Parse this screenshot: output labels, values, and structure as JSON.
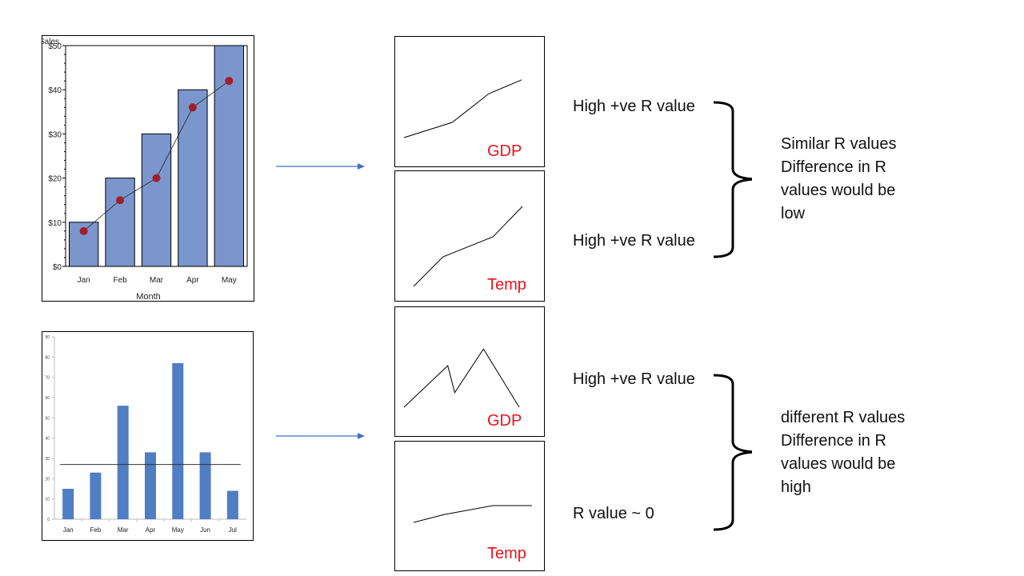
{
  "colors": {
    "bar_fill": "#7b96cd",
    "bar_fill_2": "#4f7ec2",
    "marker": "#a31c2a",
    "arrow": "#4472c4",
    "label_red": "#e8141c"
  },
  "chart_data": [
    {
      "type": "bar",
      "title": "Sales",
      "xlabel": "Month",
      "ylabel": "",
      "categories": [
        "Jan",
        "Feb",
        "Mar",
        "Apr",
        "May"
      ],
      "series": [
        {
          "type": "bar",
          "values": [
            10,
            20,
            30,
            40,
            50
          ]
        },
        {
          "type": "line",
          "values": [
            8,
            15,
            20,
            36,
            42
          ]
        }
      ],
      "ylim": [
        0,
        50
      ],
      "yticks": [
        0,
        10,
        20,
        30,
        40,
        50
      ],
      "ytick_labels": [
        "$0",
        "$10",
        "$20",
        "$30",
        "$40",
        "$50"
      ]
    },
    {
      "type": "bar",
      "xlabel": "",
      "ylabel": "",
      "categories": [
        "Jan",
        "Feb",
        "Mar",
        "Apr",
        "May",
        "Jun",
        "Jul"
      ],
      "series": [
        {
          "type": "bar",
          "values": [
            15,
            23,
            56,
            33,
            77,
            33,
            14
          ]
        },
        {
          "type": "line",
          "values": [
            27,
            27,
            27,
            27,
            27,
            27,
            27
          ]
        }
      ],
      "ylim": [
        0,
        90
      ],
      "yticks": [
        0,
        10,
        20,
        30,
        40,
        50,
        60,
        70,
        80,
        90
      ]
    },
    {
      "type": "line",
      "series": [
        {
          "name": "GDP",
          "values": [
            0,
            0.25,
            0.72,
            0.95
          ]
        }
      ],
      "ylim": [
        0,
        1
      ]
    },
    {
      "type": "line",
      "series": [
        {
          "name": "Temp",
          "values": [
            0,
            0.37,
            0.62,
            1.0
          ]
        }
      ],
      "ylim": [
        0,
        1
      ]
    },
    {
      "type": "line",
      "series": [
        {
          "name": "GDP",
          "values": [
            0,
            0.57,
            0.2,
            0.8,
            0
          ]
        }
      ],
      "ylim": [
        0,
        1
      ]
    },
    {
      "type": "line",
      "series": [
        {
          "name": "Temp",
          "values": [
            0,
            0.47,
            1.0,
            1.0
          ]
        }
      ],
      "ylim": [
        0,
        1
      ]
    }
  ],
  "panels": {
    "top_gdp": "GDP",
    "top_temp": "Temp",
    "bottom_gdp": "GDP",
    "bottom_temp": "Temp"
  },
  "annotations": {
    "top_label_1": "High +ve R value",
    "top_label_2": "High +ve R value",
    "top_summary": [
      "Similar R values",
      "Difference in R",
      "values would be",
      "low"
    ],
    "bottom_label_1": "High +ve R value",
    "bottom_label_2": "R value ~ 0",
    "bottom_summary": [
      "different R values",
      "Difference in R",
      "values would be",
      "high"
    ]
  }
}
